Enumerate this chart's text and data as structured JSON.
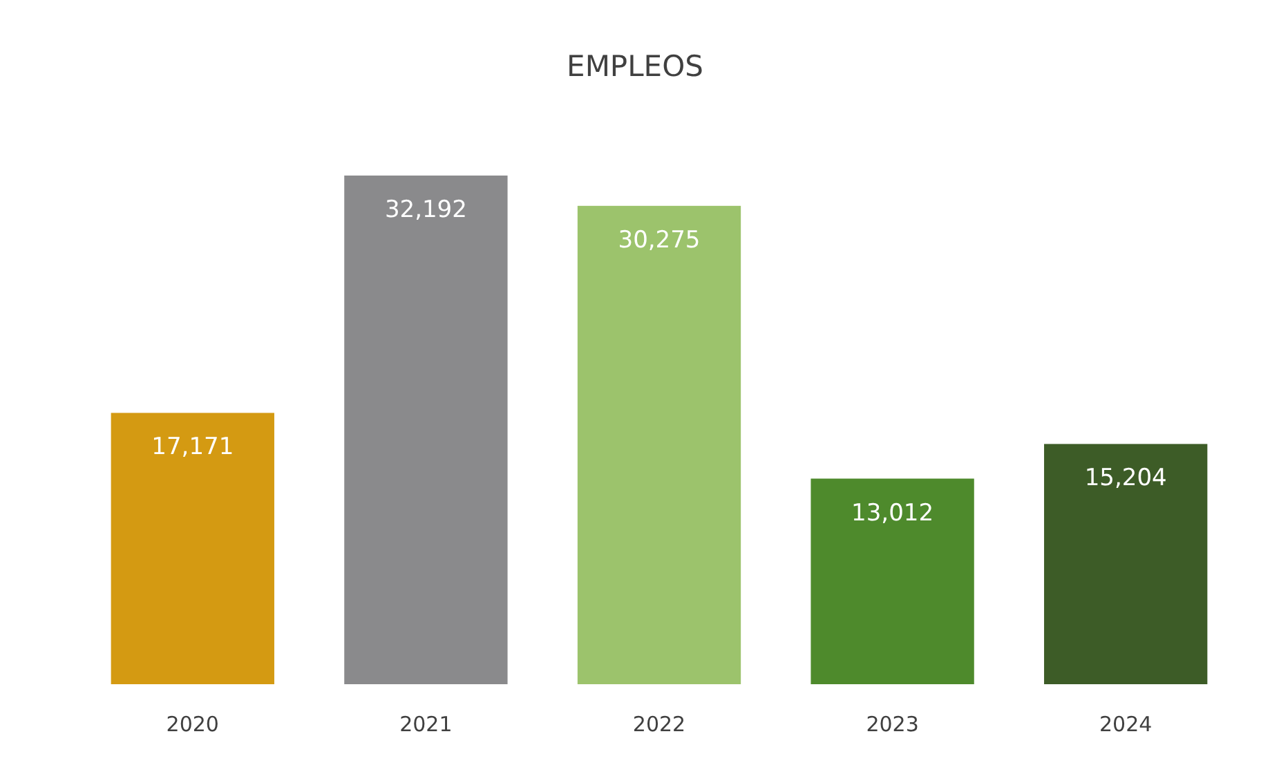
{
  "chart_data": {
    "type": "bar",
    "title": "EMPLEOS",
    "categories": [
      "2020",
      "2021",
      "2022",
      "2023",
      "2024"
    ],
    "values": [
      17171,
      32192,
      30275,
      13012,
      15204
    ],
    "value_labels": [
      "17,171",
      "32,192",
      "30,275",
      "13,012",
      "15,204"
    ],
    "colors": [
      "#d49a12",
      "#8a8a8c",
      "#9cc36c",
      "#4e8a2c",
      "#3d5c27"
    ]
  }
}
